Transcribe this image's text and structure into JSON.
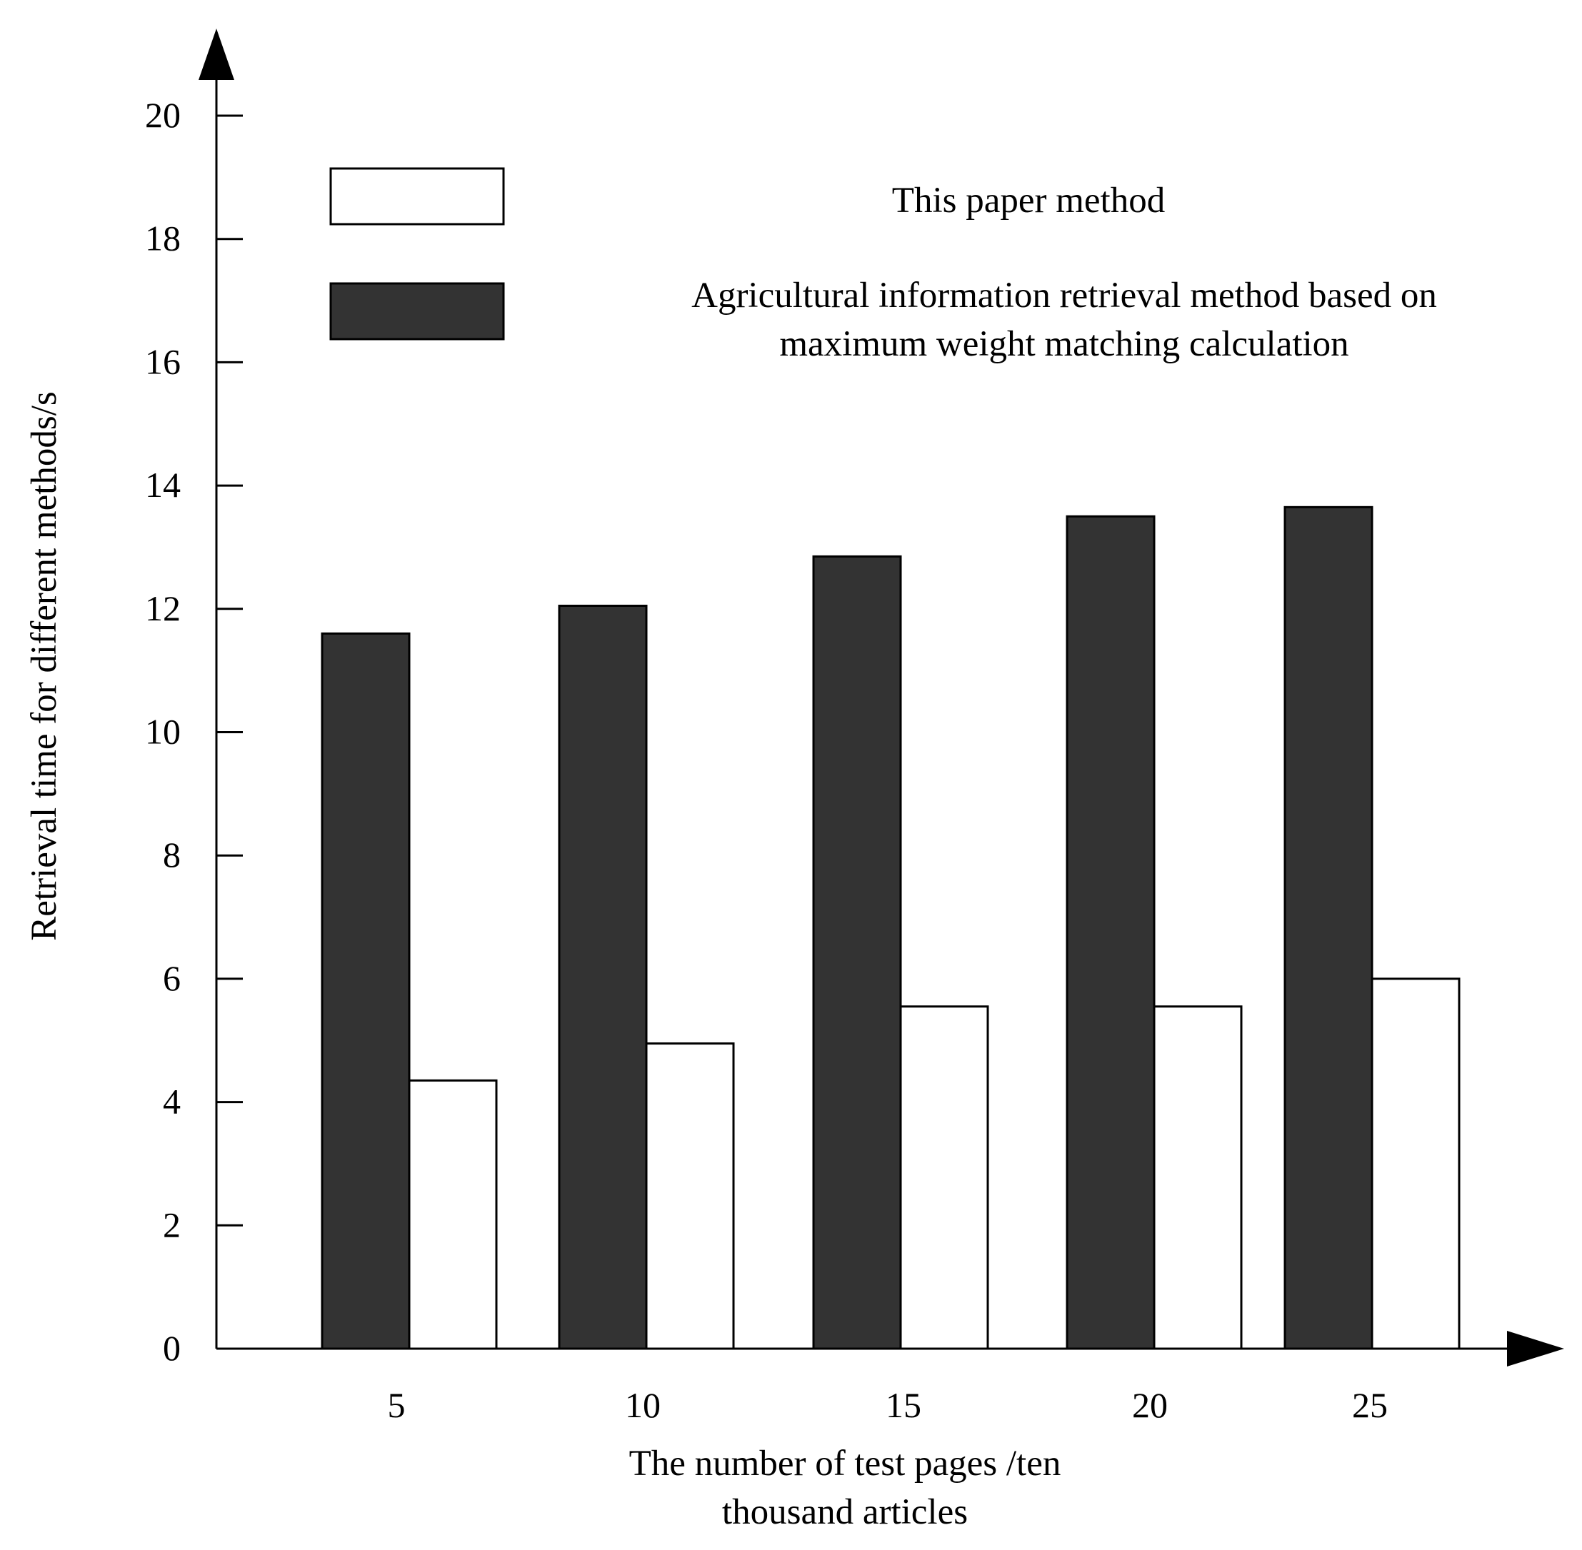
{
  "chart_data": {
    "type": "bar",
    "categories": [
      "5",
      "10",
      "15",
      "20",
      "25"
    ],
    "series": [
      {
        "name": "Agricultural information retrieval method based on maximum weight matching calculation",
        "color": "#333333",
        "values": [
          11.6,
          12.05,
          12.85,
          13.5,
          13.65
        ]
      },
      {
        "name": "This paper method",
        "color": "#ffffff",
        "values": [
          4.35,
          4.95,
          5.55,
          5.55,
          6.0
        ]
      }
    ],
    "title": "",
    "xlabel_lines": [
      "The number of test pages /ten",
      "thousand articles"
    ],
    "ylabel": "Retrieval time for different methods/s",
    "ylim": [
      0,
      20
    ],
    "yticks": [
      "0",
      "2",
      "4",
      "6",
      "8",
      "10",
      "12",
      "14",
      "16",
      "18",
      "20"
    ],
    "grid": false,
    "legend": [
      {
        "label": "This paper method",
        "swatch": "#ffffff"
      },
      {
        "label_lines": [
          "Agricultural information retrieval method based on",
          "maximum weight matching calculation"
        ],
        "swatch": "#333333"
      }
    ],
    "legend_position": "top"
  }
}
